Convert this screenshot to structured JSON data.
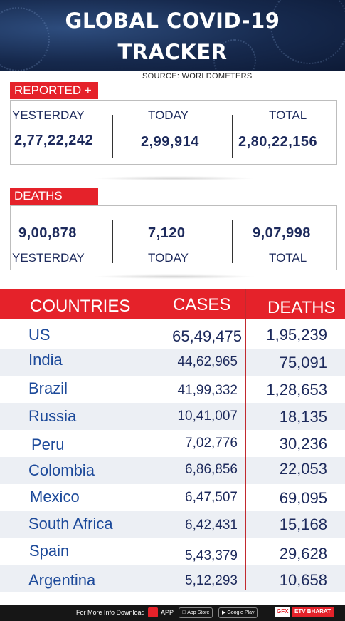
{
  "header": {
    "title_line1": "GLOBAL COVID-19",
    "title_line2": "TRACKER",
    "source": "SOURCE: WORLDOMETERS"
  },
  "reported": {
    "tag": "REPORTED +",
    "yesterday_label": "YESTERDAY",
    "today_label": "TODAY",
    "total_label": "TOTAL",
    "yesterday": "2,77,22,242",
    "today": "2,99,914",
    "total": "2,80,22,156"
  },
  "deaths": {
    "tag": "DEATHS",
    "yesterday": "9,00,878",
    "today": "7,120",
    "total": "9,07,998",
    "yesterday_label": "YESTERDAY",
    "today_label": "TODAY",
    "total_label": "TOTAL"
  },
  "table": {
    "headers": {
      "countries": "COUNTRIES",
      "cases": "CASES",
      "deaths": "DEATHS"
    },
    "rows": [
      {
        "country": "US",
        "cases": "65,49,475",
        "deaths": "1,95,239"
      },
      {
        "country": "India",
        "cases": "44,62,965",
        "deaths": "75,091"
      },
      {
        "country": "Brazil",
        "cases": "41,99,332",
        "deaths": "1,28,653"
      },
      {
        "country": "Russia",
        "cases": "10,41,007",
        "deaths": "18,135"
      },
      {
        "country": "Peru",
        "cases": "7,02,776",
        "deaths": "30,236"
      },
      {
        "country": "Colombia",
        "cases": "6,86,856",
        "deaths": "22,053"
      },
      {
        "country": "Mexico",
        "cases": "6,47,507",
        "deaths": "69,095"
      },
      {
        "country": "South Africa",
        "cases": "6,42,431",
        "deaths": "15,168"
      },
      {
        "country": "Spain",
        "cases": "5,43,379",
        "deaths": "29,628"
      },
      {
        "country": "Argentina",
        "cases": "5,12,293",
        "deaths": "10,658"
      }
    ]
  },
  "footer": {
    "info": "For More Info Download",
    "app": "APP",
    "appstore": "App Store",
    "googleplay": "Google Play",
    "gfx": "GFX",
    "brand": "ETV BHARAT"
  }
}
